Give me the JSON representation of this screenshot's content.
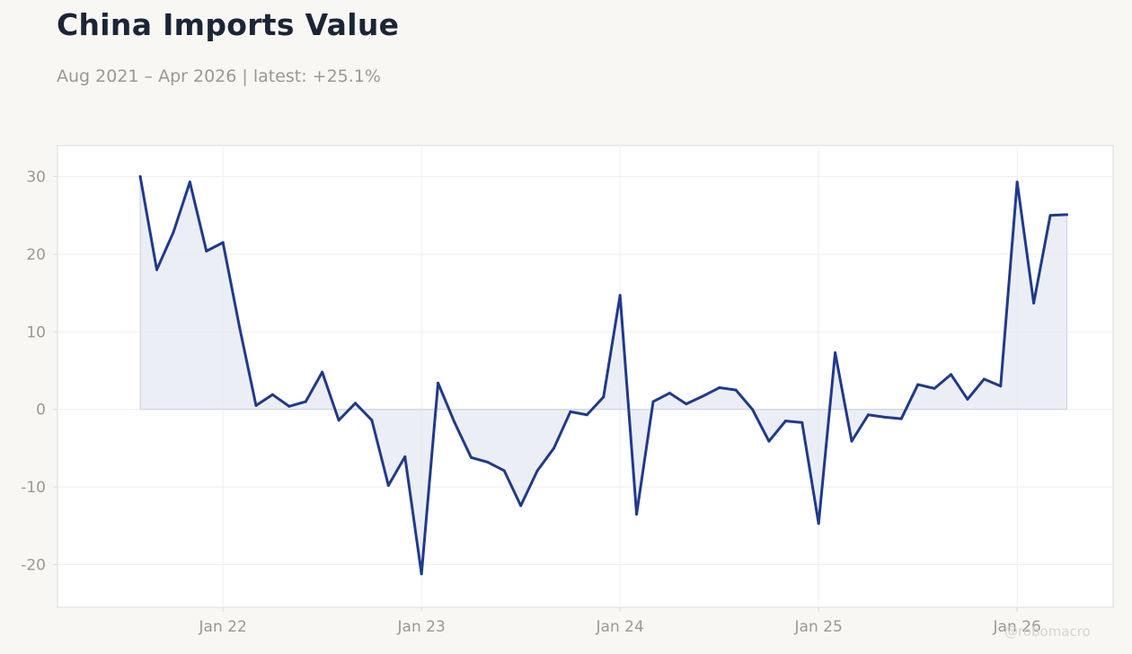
{
  "header": {
    "title": "China Imports Value",
    "subtitle": "Aug 2021 – Apr 2026 | latest: +25.1%"
  },
  "watermark": "@robomacro",
  "colors": {
    "line": "#1f3a8a",
    "area": "#e4e7f1",
    "background": "#f8f7f4",
    "plot_background": "#ffffff",
    "grid": "#eeeeee",
    "frame": "#dcdcd6",
    "tick_text": "#9a9893"
  },
  "chart_data": {
    "type": "area",
    "title": "China Imports Value",
    "xlabel": "",
    "ylabel": "",
    "ylim": [
      -25.5,
      34
    ],
    "grid": true,
    "legend": "none",
    "x_ticks": [
      {
        "date": "2022-01",
        "label": "Jan 22"
      },
      {
        "date": "2023-01",
        "label": "Jan 23"
      },
      {
        "date": "2024-01",
        "label": "Jan 24"
      },
      {
        "date": "2025-01",
        "label": "Jan 25"
      },
      {
        "date": "2026-01",
        "label": "Jan 26"
      }
    ],
    "y_ticks": [
      {
        "value": 30,
        "label": "30"
      },
      {
        "value": 20,
        "label": "20"
      },
      {
        "value": 10,
        "label": "10"
      },
      {
        "value": 0,
        "label": "0"
      },
      {
        "value": -10,
        "label": "-10"
      },
      {
        "value": -20,
        "label": "-20"
      }
    ],
    "series": [
      {
        "x": [
          "2021-08",
          "2021-09",
          "2021-10",
          "2021-11",
          "2021-12",
          "2022-01",
          "2022-02",
          "2022-03",
          "2022-04",
          "2022-05",
          "2022-06",
          "2022-07",
          "2022-08",
          "2022-09",
          "2022-10",
          "2022-11",
          "2022-12",
          "2023-01",
          "2023-02",
          "2023-03",
          "2023-04",
          "2023-05",
          "2023-06",
          "2023-07",
          "2023-08",
          "2023-09",
          "2023-10",
          "2023-11",
          "2023-12",
          "2024-01",
          "2024-02",
          "2024-03",
          "2024-04",
          "2024-05",
          "2024-06",
          "2024-07",
          "2024-08",
          "2024-09",
          "2024-10",
          "2024-11",
          "2024-12",
          "2025-01",
          "2025-02",
          "2025-03",
          "2025-04",
          "2025-05",
          "2025-06",
          "2025-07",
          "2025-08",
          "2025-09",
          "2025-10",
          "2025-11",
          "2025-12",
          "2026-01",
          "2026-02",
          "2026-03",
          "2026-04"
        ],
        "values": [
          30.0,
          18.0,
          22.8,
          29.3,
          20.4,
          21.5,
          10.6,
          0.5,
          1.9,
          0.4,
          1.0,
          4.8,
          -1.4,
          0.8,
          -1.4,
          -9.8,
          -6.1,
          -21.2,
          3.4,
          -1.7,
          -6.2,
          -6.8,
          -7.9,
          -12.4,
          -7.9,
          -5.0,
          -0.3,
          -0.7,
          1.6,
          14.7,
          -13.5,
          1.0,
          2.1,
          0.7,
          1.7,
          2.8,
          2.5,
          0.0,
          -4.1,
          -1.5,
          -1.7,
          -14.7,
          7.3,
          -4.1,
          -0.7,
          -1.0,
          -1.2,
          3.2,
          2.7,
          4.5,
          1.3,
          3.9,
          3.0,
          29.3,
          13.7,
          25.0,
          25.1
        ]
      }
    ]
  }
}
